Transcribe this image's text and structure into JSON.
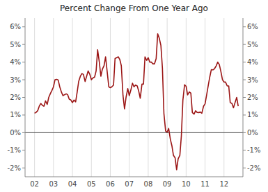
{
  "chart_data": {
    "type": "line",
    "title": "Percent Change From One Year Ago",
    "color": "#9b1515",
    "grid": true,
    "xlim": [
      2001.5,
      2013.0
    ],
    "xticks": [
      {
        "value": 2002.0,
        "label": "02"
      },
      {
        "value": 2003.0,
        "label": "03"
      },
      {
        "value": 2004.0,
        "label": "04"
      },
      {
        "value": 2005.0,
        "label": "05"
      },
      {
        "value": 2006.0,
        "label": "06"
      },
      {
        "value": 2007.0,
        "label": "07"
      },
      {
        "value": 2008.0,
        "label": "08"
      },
      {
        "value": 2009.0,
        "label": "09"
      },
      {
        "value": 2010.0,
        "label": "10"
      },
      {
        "value": 2011.0,
        "label": "11"
      },
      {
        "value": 2012.0,
        "label": "12"
      }
    ],
    "ylim": [
      -2.5,
      6.5
    ],
    "yticks": [
      {
        "value": -2,
        "label": "-2%"
      },
      {
        "value": -1,
        "label": "-1%"
      },
      {
        "value": 0,
        "label": "0%"
      },
      {
        "value": 1,
        "label": "1%"
      },
      {
        "value": 2,
        "label": "2%"
      },
      {
        "value": 3,
        "label": "3%"
      },
      {
        "value": 4,
        "label": "4%"
      },
      {
        "value": 5,
        "label": "5%"
      },
      {
        "value": 6,
        "label": "6%"
      }
    ],
    "y2lim": [
      -2.5,
      6.5
    ],
    "y2ticks": [
      {
        "value": -2,
        "label": "-2%"
      },
      {
        "value": -1,
        "label": "-1%"
      },
      {
        "value": 0,
        "label": "0%"
      },
      {
        "value": 1,
        "label": "1%"
      },
      {
        "value": 2,
        "label": "2%"
      },
      {
        "value": 3,
        "label": "3%"
      },
      {
        "value": 4,
        "label": "4%"
      },
      {
        "value": 5,
        "label": "5%"
      },
      {
        "value": 6,
        "label": "6%"
      }
    ],
    "x": [
      2002.0,
      2002.08,
      2002.17,
      2002.25,
      2002.33,
      2002.42,
      2002.5,
      2002.58,
      2002.67,
      2002.75,
      2002.83,
      2002.92,
      2003.0,
      2003.08,
      2003.17,
      2003.25,
      2003.33,
      2003.42,
      2003.5,
      2003.58,
      2003.67,
      2003.75,
      2003.83,
      2003.92,
      2004.0,
      2004.08,
      2004.17,
      2004.25,
      2004.33,
      2004.42,
      2004.5,
      2004.58,
      2004.67,
      2004.75,
      2004.83,
      2004.92,
      2005.0,
      2005.08,
      2005.17,
      2005.25,
      2005.33,
      2005.42,
      2005.5,
      2005.58,
      2005.67,
      2005.75,
      2005.83,
      2005.92,
      2006.0,
      2006.08,
      2006.17,
      2006.25,
      2006.33,
      2006.42,
      2006.5,
      2006.58,
      2006.67,
      2006.75,
      2006.83,
      2006.92,
      2007.0,
      2007.08,
      2007.17,
      2007.25,
      2007.33,
      2007.42,
      2007.5,
      2007.58,
      2007.67,
      2007.75,
      2007.83,
      2007.92,
      2008.0,
      2008.08,
      2008.17,
      2008.25,
      2008.33,
      2008.42,
      2008.5,
      2008.58,
      2008.67,
      2008.75,
      2008.83,
      2008.92,
      2009.0,
      2009.08,
      2009.17,
      2009.25,
      2009.33,
      2009.42,
      2009.5,
      2009.58,
      2009.67,
      2009.75,
      2009.83,
      2009.92,
      2010.0,
      2010.08,
      2010.17,
      2010.25,
      2010.33,
      2010.42,
      2010.5,
      2010.58,
      2010.67,
      2010.75,
      2010.83,
      2010.92,
      2011.0,
      2011.08,
      2011.17,
      2011.25,
      2011.33,
      2011.42,
      2011.5,
      2011.58,
      2011.67,
      2011.75,
      2011.83,
      2011.92,
      2012.0,
      2012.08,
      2012.17,
      2012.25,
      2012.33,
      2012.42,
      2012.5,
      2012.58,
      2012.67,
      2012.75
    ],
    "values": [
      1.1,
      1.15,
      1.25,
      1.5,
      1.65,
      1.55,
      1.5,
      1.8,
      1.6,
      2.0,
      2.2,
      2.4,
      2.6,
      3.0,
      3.02,
      2.98,
      2.6,
      2.3,
      2.1,
      2.15,
      2.2,
      2.15,
      1.9,
      1.85,
      1.7,
      1.85,
      1.75,
      2.3,
      2.9,
      3.2,
      3.35,
      3.3,
      2.9,
      3.2,
      3.5,
      3.3,
      3.0,
      3.1,
      3.15,
      3.5,
      4.7,
      4.0,
      3.2,
      3.6,
      3.8,
      4.3,
      3.5,
      2.6,
      2.55,
      2.6,
      2.7,
      4.2,
      4.25,
      4.3,
      4.15,
      3.8,
      2.1,
      1.35,
      2.0,
      2.5,
      2.1,
      2.4,
      2.8,
      2.6,
      2.7,
      2.65,
      2.35,
      1.95,
      2.75,
      2.75,
      4.3,
      4.1,
      4.25,
      4.0,
      4.0,
      3.9,
      3.9,
      4.2,
      5.6,
      5.37,
      4.94,
      3.66,
      1.07,
      0.09,
      0.03,
      0.24,
      -0.38,
      -0.74,
      -1.28,
      -1.43,
      -2.1,
      -1.48,
      -1.29,
      -0.18,
      1.84,
      2.72,
      2.63,
      2.14,
      2.31,
      2.24,
      1.14,
      1.05,
      1.24,
      1.15,
      1.14,
      1.17,
      1.1,
      1.5,
      1.63,
      2.11,
      2.68,
      3.16,
      3.57,
      3.56,
      3.63,
      3.77,
      4.0,
      3.87,
      3.5,
      3.0,
      2.87,
      2.87,
      2.65,
      2.65,
      1.7,
      1.66,
      1.41,
      1.69,
      2.0,
      1.5
    ]
  }
}
